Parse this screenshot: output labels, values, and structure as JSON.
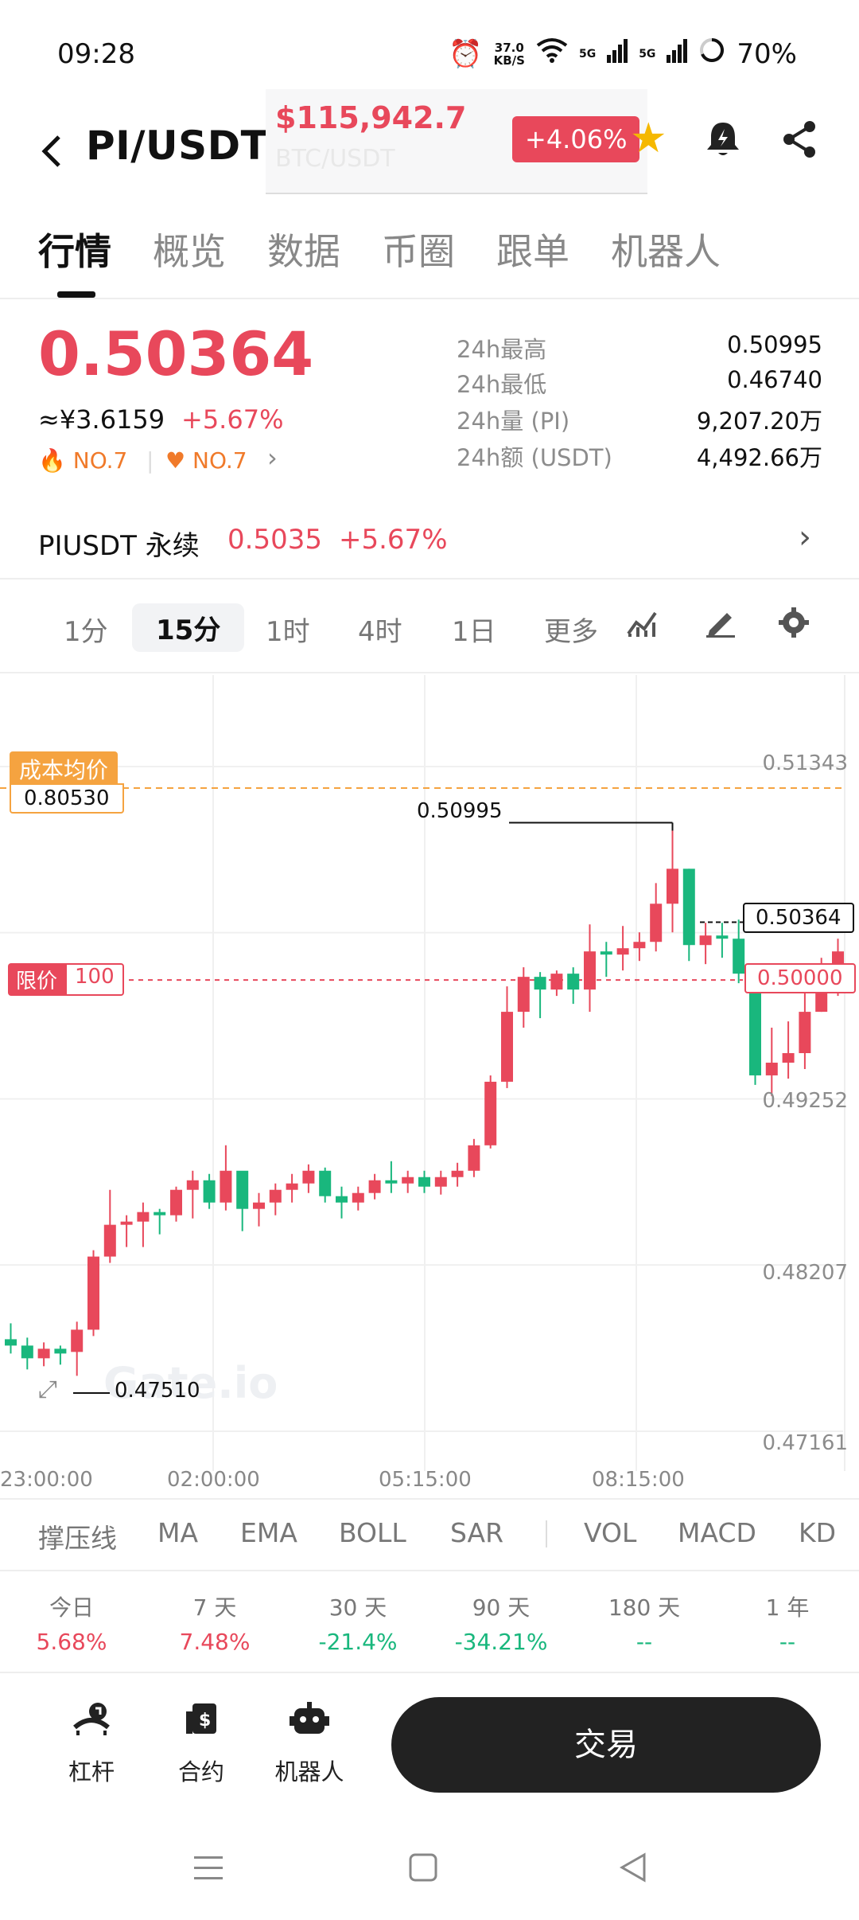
{
  "status": {
    "time": "09:28",
    "speed_top": "37.0",
    "speed_bottom": "KB/S",
    "sig1": "5G",
    "sig2": "5G",
    "battery": "70%"
  },
  "header": {
    "pair": "PI/USDT",
    "btc_price": "$115,942.7",
    "btc_name": "BTC/USDT",
    "btc_change": "+4.06%"
  },
  "tabs": [
    "行情",
    "概览",
    "数据",
    "币圈",
    "跟单",
    "机器人"
  ],
  "price": {
    "last": "0.50364",
    "cny": "≈¥3.6159",
    "change": "+5.67%",
    "rank_hot": "NO.7",
    "rank_fav": "NO.7"
  },
  "stats": [
    {
      "label": "24h最高",
      "value": "0.50995"
    },
    {
      "label": "24h最低",
      "value": "0.46740"
    },
    {
      "label": "24h量 (PI)",
      "value": "9,207.20万"
    },
    {
      "label": "24h额 (USDT)",
      "value": "4,492.66万"
    }
  ],
  "perp": {
    "name": "PIUSDT 永续",
    "price": "0.5035",
    "change": "+5.67%"
  },
  "intervals": [
    "1分",
    "15分",
    "1时",
    "4时",
    "1日",
    "更多"
  ],
  "chart": {
    "cost_label": "成本均价",
    "cost_value": "0.80530",
    "limit_label": "限价",
    "limit_qty": "100",
    "limit_price": "0.50000",
    "high_mark": "0.50995",
    "low_mark": "0.47510",
    "last_mark": "0.50364",
    "y_ticks": [
      "0.51343",
      "0.49252",
      "0.48207",
      "0.47161"
    ],
    "x_ticks": [
      "23:00:00",
      "02:00:00",
      "05:15:00",
      "08:15:00"
    ],
    "watermark": "Gate.io"
  },
  "chart_data": {
    "type": "candlestick",
    "ylim": [
      0.47161,
      0.51343
    ],
    "candles": [
      [
        0.4774,
        0.477,
        0.4784,
        0.4765
      ],
      [
        0.477,
        0.4762,
        0.4775,
        0.4755
      ],
      [
        0.4762,
        0.4768,
        0.4772,
        0.4757
      ],
      [
        0.4768,
        0.4765,
        0.477,
        0.4758
      ],
      [
        0.4766,
        0.478,
        0.4785,
        0.4751
      ],
      [
        0.478,
        0.4826,
        0.483,
        0.4776
      ],
      [
        0.4826,
        0.4846,
        0.4868,
        0.4822
      ],
      [
        0.4846,
        0.4848,
        0.4852,
        0.4832
      ],
      [
        0.4848,
        0.4854,
        0.486,
        0.4832
      ],
      [
        0.4854,
        0.4852,
        0.4856,
        0.484
      ],
      [
        0.4852,
        0.4868,
        0.487,
        0.4848
      ],
      [
        0.4868,
        0.4874,
        0.488,
        0.485
      ],
      [
        0.4874,
        0.486,
        0.4878,
        0.4856
      ],
      [
        0.486,
        0.488,
        0.4896,
        0.4855
      ],
      [
        0.488,
        0.4856,
        0.4875,
        0.4842
      ],
      [
        0.4856,
        0.486,
        0.4866,
        0.4845
      ],
      [
        0.486,
        0.4868,
        0.4872,
        0.4852
      ],
      [
        0.4868,
        0.4872,
        0.4878,
        0.486
      ],
      [
        0.4872,
        0.488,
        0.4884,
        0.4866
      ],
      [
        0.488,
        0.4864,
        0.4882,
        0.486
      ],
      [
        0.4864,
        0.486,
        0.487,
        0.485
      ],
      [
        0.486,
        0.4866,
        0.487,
        0.4855
      ],
      [
        0.4866,
        0.4874,
        0.4878,
        0.4862
      ],
      [
        0.4874,
        0.4872,
        0.4886,
        0.4866
      ],
      [
        0.4872,
        0.4876,
        0.488,
        0.4866
      ],
      [
        0.4876,
        0.487,
        0.488,
        0.4866
      ],
      [
        0.487,
        0.4876,
        0.488,
        0.4865
      ],
      [
        0.4876,
        0.488,
        0.4885,
        0.487
      ],
      [
        0.488,
        0.4896,
        0.49,
        0.4876
      ],
      [
        0.4896,
        0.4936,
        0.494,
        0.4894
      ],
      [
        0.4936,
        0.498,
        0.4996,
        0.4932
      ],
      [
        0.498,
        0.5002,
        0.5008,
        0.497
      ],
      [
        0.5002,
        0.4994,
        0.5005,
        0.4976
      ],
      [
        0.4994,
        0.5004,
        0.5006,
        0.499
      ],
      [
        0.5004,
        0.4994,
        0.5008,
        0.4985
      ],
      [
        0.4994,
        0.5018,
        0.5035,
        0.498
      ],
      [
        0.5018,
        0.5016,
        0.5024,
        0.5002
      ],
      [
        0.5016,
        0.502,
        0.5034,
        0.5006
      ],
      [
        0.502,
        0.5024,
        0.503,
        0.5012
      ],
      [
        0.5024,
        0.5048,
        0.5061,
        0.5018
      ],
      [
        0.5048,
        0.507,
        0.5099,
        0.503
      ],
      [
        0.507,
        0.5022,
        0.507,
        0.5012
      ],
      [
        0.5022,
        0.5028,
        0.5036,
        0.501
      ],
      [
        0.5028,
        0.5026,
        0.5036,
        0.5014
      ],
      [
        0.5026,
        0.5004,
        0.5038,
        0.4998
      ],
      [
        0.5004,
        0.494,
        0.5004,
        0.4934
      ],
      [
        0.494,
        0.4948,
        0.497,
        0.4927
      ],
      [
        0.4948,
        0.4954,
        0.4974,
        0.4938
      ],
      [
        0.4954,
        0.498,
        0.4996,
        0.4944
      ],
      [
        0.498,
        0.5002,
        0.5014,
        0.498
      ],
      [
        0.5002,
        0.5018,
        0.5026,
        0.499
      ]
    ]
  },
  "indicators": [
    "撑压线",
    "MA",
    "EMA",
    "BOLL",
    "SAR",
    "VOL",
    "MACD",
    "KD"
  ],
  "periods": [
    {
      "label": "今日",
      "value": "5.68%",
      "color": "#e8485b"
    },
    {
      "label": "7 天",
      "value": "7.48%",
      "color": "#e8485b"
    },
    {
      "label": "30 天",
      "value": "-21.4%",
      "color": "#19b77d"
    },
    {
      "label": "90 天",
      "value": "-34.21%",
      "color": "#19b77d"
    },
    {
      "label": "180 天",
      "value": "--",
      "color": "#19b77d"
    },
    {
      "label": "1 年",
      "value": "--",
      "color": "#19b77d"
    }
  ],
  "actions": [
    {
      "label": "杠杆"
    },
    {
      "label": "合约"
    },
    {
      "label": "机器人"
    }
  ],
  "trade_label": "交易",
  "colors": {
    "up": "#e8485b",
    "down": "#19b77d",
    "cost": "#f5a340"
  }
}
